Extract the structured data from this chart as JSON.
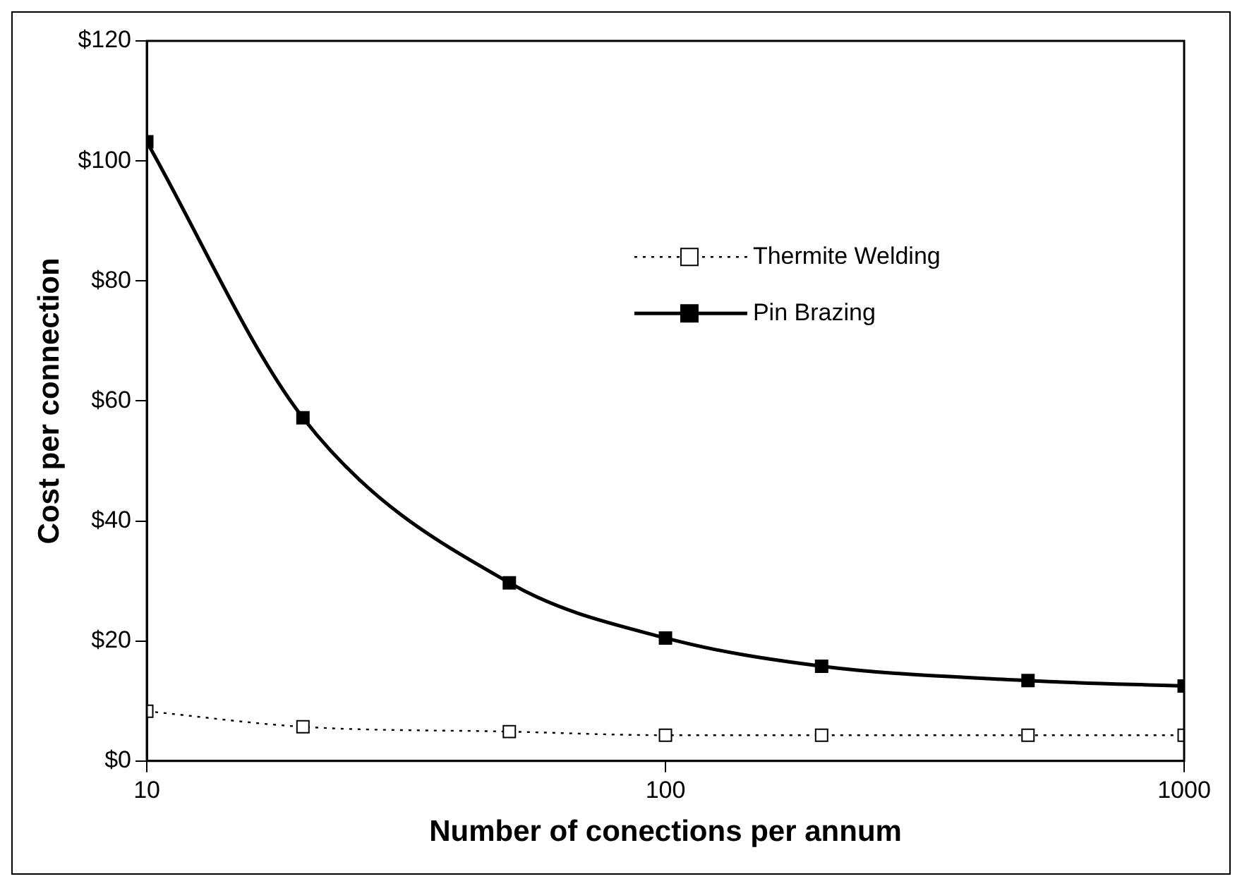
{
  "chart_data": {
    "type": "line",
    "xlabel": "Number of conections per annum",
    "ylabel": "Cost per connection",
    "log": "x",
    "x": [
      10,
      20,
      50,
      100,
      200,
      500,
      1000
    ],
    "series": [
      {
        "name": "Thermite Welding",
        "color": "#000000",
        "values": [
          8.3,
          5.7,
          4.9,
          4.3,
          4.3,
          4.3,
          4.3
        ],
        "line_style": "dotted"
      },
      {
        "name": "Pin Brazing",
        "color": "#000000",
        "values": [
          103.2,
          57.2,
          29.7,
          20.5,
          15.8,
          13.4,
          12.5
        ],
        "line_style": "solid"
      }
    ],
    "xlim": [
      10,
      1000
    ],
    "xticks": [
      10,
      100,
      1000
    ],
    "ylim": [
      0,
      120
    ],
    "yticks": [
      {
        "value": 0,
        "label": "$0"
      },
      {
        "value": 20,
        "label": "$20"
      },
      {
        "value": 40,
        "label": "$40"
      },
      {
        "value": 60,
        "label": "$60"
      },
      {
        "value": 80,
        "label": "$80"
      },
      {
        "value": 100,
        "label": "$100"
      },
      {
        "value": 120,
        "label": "$120"
      }
    ],
    "grid": false,
    "legend": "top right",
    "marker": "square"
  }
}
